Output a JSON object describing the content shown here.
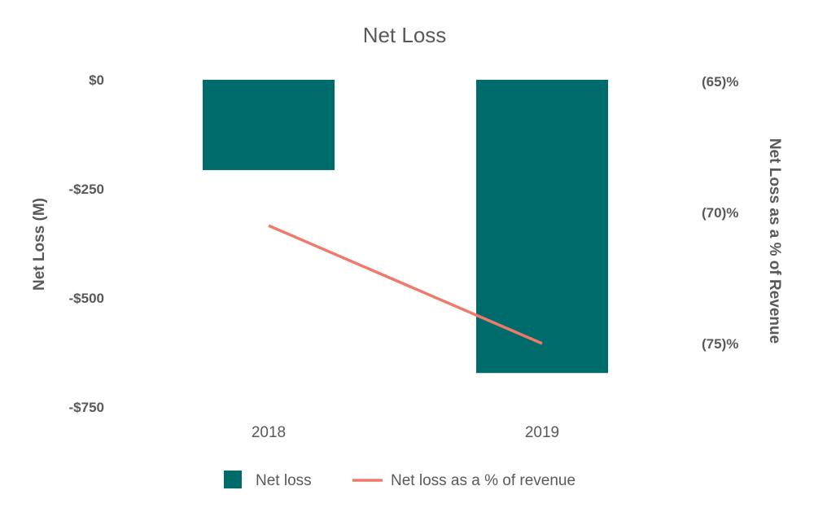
{
  "chart_data": {
    "type": "bar",
    "title": "Net Loss",
    "categories": [
      "2018",
      "2019"
    ],
    "series": [
      {
        "name": "Net loss",
        "type": "bar",
        "axis": "left",
        "color": "#006b6b",
        "values": [
          -207,
          -672
        ]
      },
      {
        "name": "Net loss as a % of revenue",
        "type": "line",
        "axis": "right",
        "color": "#f07a6a",
        "values": [
          -70.5,
          -75.0
        ]
      }
    ],
    "ylabel": "Net Loss (M)",
    "ylim": [
      -750,
      0
    ],
    "yticks": [
      0,
      -250,
      -500,
      -750
    ],
    "ytick_labels": [
      "$0",
      "-$250",
      "-$500",
      "-$750"
    ],
    "y2label": "Net Loss as a % of Revenue",
    "y2lim": [
      -77.5,
      -65
    ],
    "y2ticks": [
      -65,
      -70,
      -75
    ],
    "y2tick_labels": [
      "(65)%",
      "(70)%",
      "(75)%"
    ],
    "grid": false,
    "legend_position": "bottom"
  }
}
